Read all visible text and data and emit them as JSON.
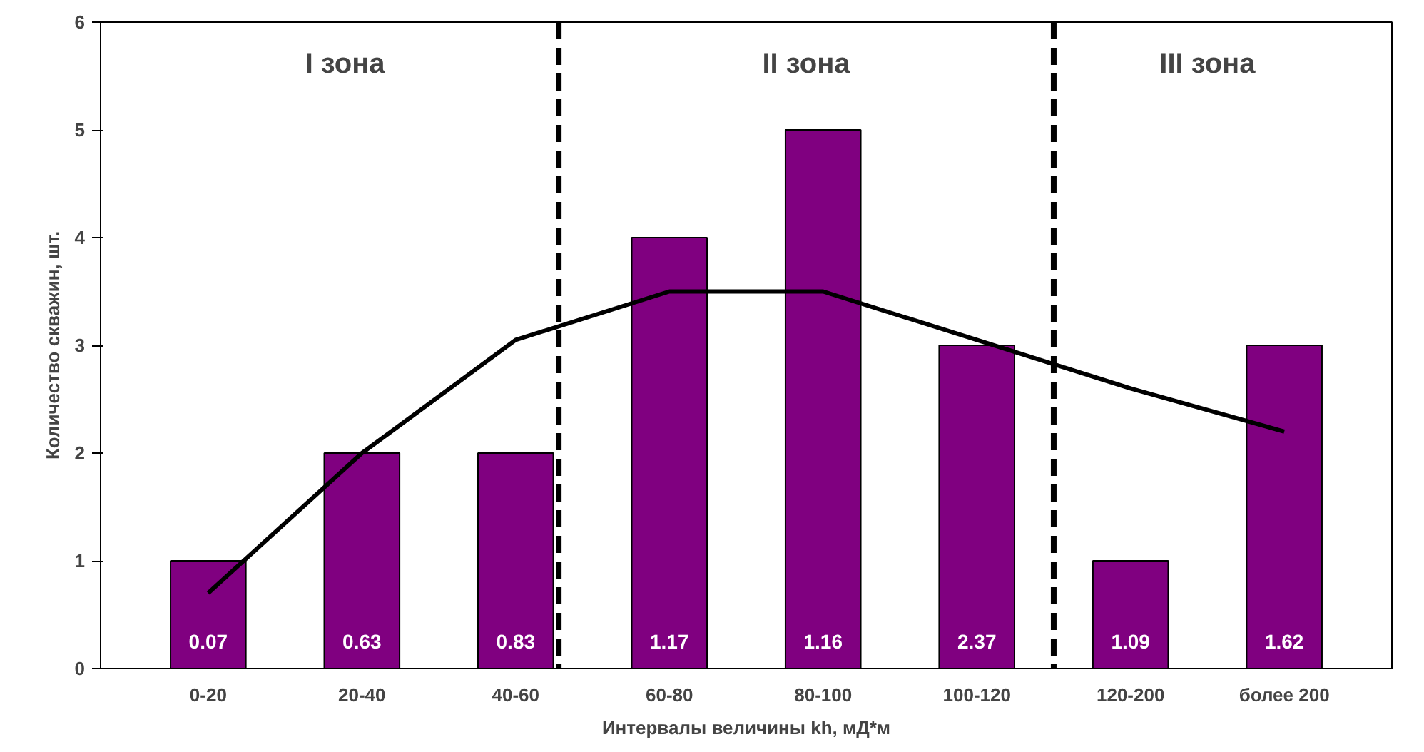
{
  "chart_data": {
    "type": "bar",
    "xlabel": "Интервалы величины kh, мД*м",
    "ylabel": "Количество скважин, шт.",
    "categories": [
      "0-20",
      "20-40",
      "40-60",
      "60-80",
      "80-100",
      "100-120",
      "120-200",
      "более 200"
    ],
    "series": [
      {
        "color": "#800080",
        "values": [
          1,
          2,
          2,
          4,
          5,
          3,
          1,
          3
        ]
      },
      {
        "type": "line",
        "color": "#000000",
        "values": [
          0.7,
          2.0,
          3.05,
          3.5,
          3.5,
          3.05,
          2.6,
          2.2
        ]
      }
    ],
    "ylim": [
      0,
      6
    ],
    "yticks": [
      0,
      1,
      2,
      3,
      4,
      5,
      6
    ],
    "grid": false,
    "annotations": [
      "I зона",
      "II зона",
      "III зона",
      "0.07",
      "0.63",
      "0.83",
      "1.17",
      "1.16",
      "2.37",
      "1.09",
      "1.62"
    ]
  }
}
